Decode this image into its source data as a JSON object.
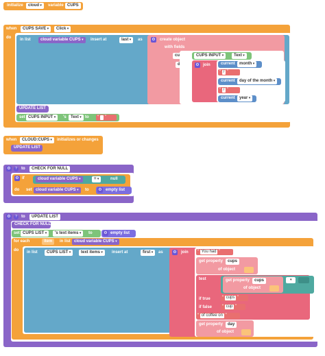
{
  "block1": {
    "initialize": "initialize",
    "cloud": "cloud",
    "variable": "variable",
    "name": "CUPS"
  },
  "block2": {
    "when": "when",
    "component": "CUPS SAVE",
    "event": "Click",
    "do": "do",
    "in_list": "in list",
    "list_var": "cloud variable CUPS",
    "insert_at": "insert at",
    "last": "last",
    "as": "as",
    "create_object": "create object",
    "with_fields": "with fields",
    "cups_key": "cups",
    "cups_input": "CUPS INPUT",
    "text_prop": "Text",
    "day_key": "day",
    "join": "join",
    "current": "current",
    "month": "month",
    "day_of_month": "day of the month",
    "year": "year",
    "slash": "/",
    "update_list": "UPDATE LIST",
    "set": "set",
    "cups_input_set": "CUPS INPUT",
    "s_text": "'s",
    "text_prop2": "Text",
    "to": "to"
  },
  "block3": {
    "when": "when",
    "event": "CLOUD:CUPS",
    "initializes": "initializes or changes",
    "update_list": "UPDATE LIST"
  },
  "block4": {
    "to": "to",
    "name": "CHECK FOR NULL",
    "if": "if",
    "cloud_var": "cloud variable CUPS",
    "eq": "=",
    "null": "null",
    "do": "do",
    "set": "set",
    "to2": "to",
    "empty_list": "empty list"
  },
  "block5": {
    "to": "to",
    "name": "UPDATE LIST",
    "check": "CHECK FOR NULL",
    "set": "set",
    "cups_list": "CUPS LIST",
    "s_text_items": "'s text items",
    "empty_list": "empty list",
    "for_each": "for each",
    "item": "item",
    "in_list": "in list",
    "cloud_var": "cloud variable CUPS",
    "do": "do",
    "insert_at": "insert at",
    "first": "first",
    "as": "as",
    "text_items": "text items",
    "join": "join",
    "you_had": "You had",
    "get_property": "get property",
    "cups": "cups",
    "of_object": "of object",
    "test": "test",
    "if_true": "if true",
    "if_false": "if false",
    "cup": "cup",
    "cups_s": "cups",
    "of_coffee_on": "of coffee on",
    "day": "day"
  }
}
